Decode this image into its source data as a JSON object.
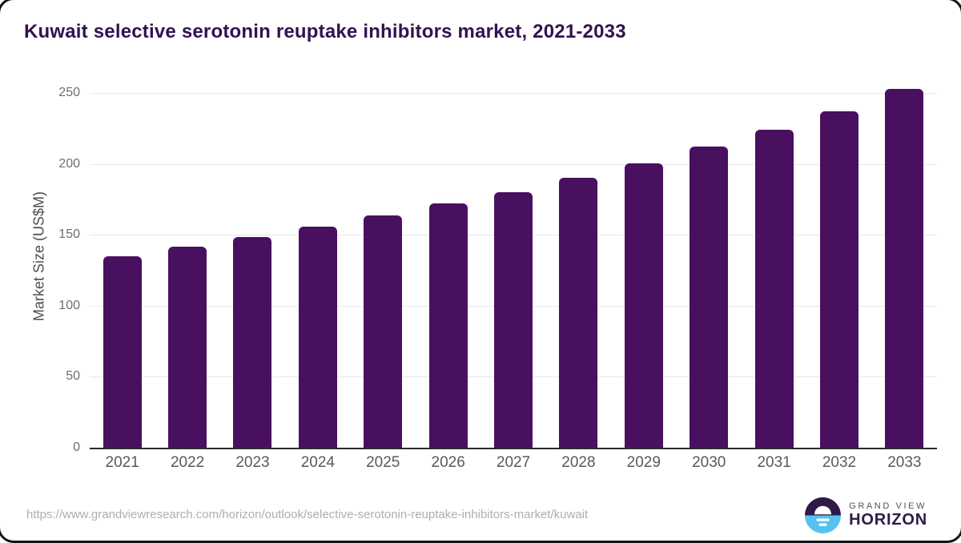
{
  "title": "Kuwait selective serotonin reuptake inhibitors market, 2021-2033",
  "source_url": "https://www.grandviewresearch.com/horizon/outlook/selective-serotonin-reuptake-inhibitors-market/kuwait",
  "brand": {
    "line1": "GRAND VIEW",
    "line2": "HORIZON",
    "icon": "horizon-sun-logo-icon",
    "dark_color": "#2e1a47",
    "blue_color": "#56c2ef"
  },
  "colors": {
    "bar": "#4a1060",
    "title_text": "#321251",
    "axis_line": "#2b2b2b",
    "gridline": "#e8e8e8",
    "tick_text": "#6d6e71",
    "x_label_text": "#58595b",
    "url_text": "#aeaeae"
  },
  "chart_data": {
    "type": "bar",
    "title": "Kuwait selective serotonin reuptake inhibitors market, 2021-2033",
    "categories": [
      "2021",
      "2022",
      "2023",
      "2024",
      "2025",
      "2026",
      "2027",
      "2028",
      "2029",
      "2030",
      "2031",
      "2032",
      "2033"
    ],
    "values": [
      134.8,
      141.4,
      148.3,
      155.9,
      163.4,
      172.0,
      180.3,
      190.2,
      200.6,
      212.2,
      224.1,
      236.9,
      252.7
    ],
    "xlabel": "",
    "ylabel": "Market Size (US$M)",
    "ylim": [
      0,
      250
    ],
    "ytick_step": 50,
    "yticks": [
      0,
      50,
      100,
      150,
      200,
      250
    ],
    "grid": "horizontal",
    "legend": "none",
    "bar_color": "#4a1060"
  }
}
